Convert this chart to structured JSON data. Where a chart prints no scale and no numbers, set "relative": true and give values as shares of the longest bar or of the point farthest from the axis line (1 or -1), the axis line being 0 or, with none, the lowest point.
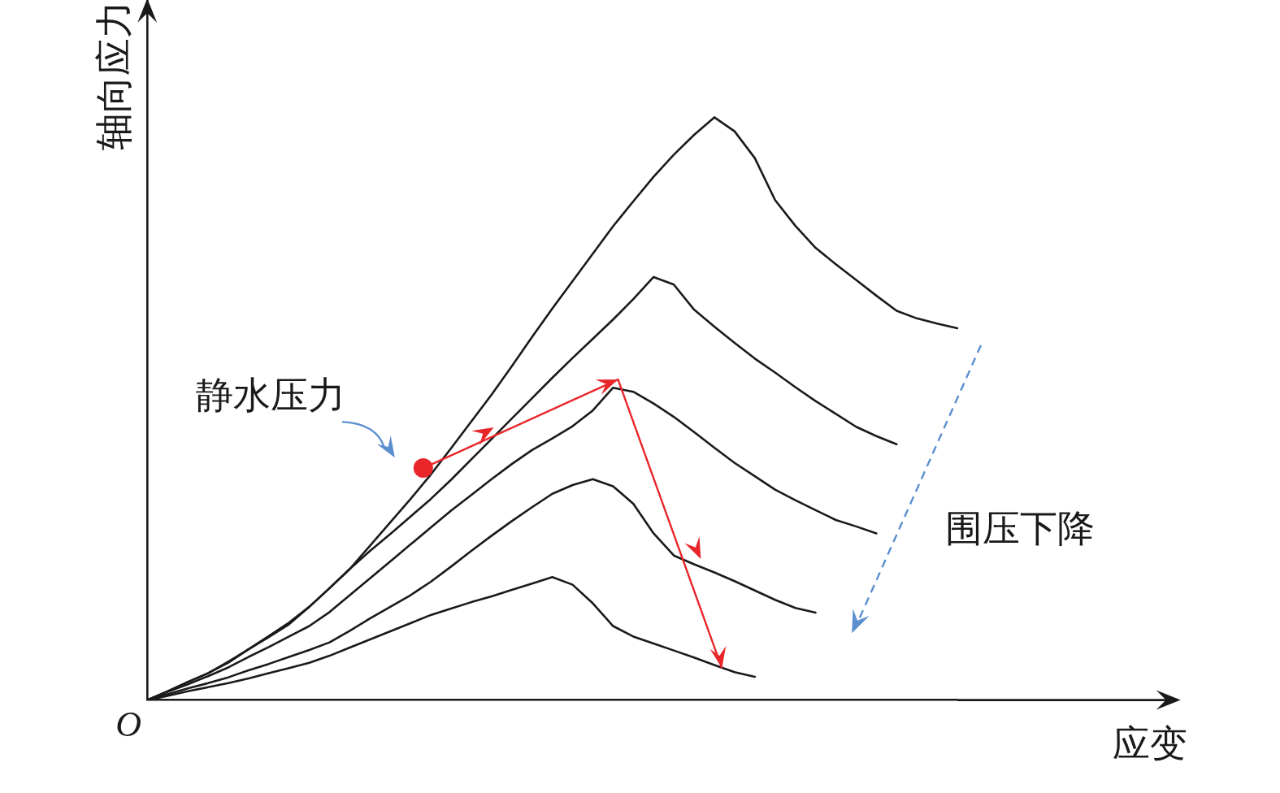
{
  "chart_data": {
    "type": "line",
    "relative": true,
    "xlabel": "应变",
    "ylabel": "轴向应力",
    "annotations": [
      "静水压力",
      "围压下降",
      "O"
    ],
    "grid": false,
    "legend": false,
    "marker": "none",
    "line_style": "solid",
    "categories": [
      null,
      null,
      null,
      null,
      null,
      null,
      null,
      null,
      null,
      null,
      null,
      null,
      null,
      null,
      null,
      null,
      null,
      null,
      null,
      null,
      null,
      null,
      null,
      null,
      null,
      null,
      null,
      null,
      null,
      null,
      null,
      null,
      null,
      null,
      null,
      null,
      null,
      null,
      null,
      null,
      null
    ],
    "series": [
      {
        "color": "#1a1a1a",
        "values": [
          0,
          0.015,
          0.031,
          0.046,
          0.066,
          0.087,
          0.108,
          0.13,
          0.16,
          0.192,
          0.225,
          0.265,
          0.305,
          0.345,
          0.387,
          0.432,
          0.478,
          0.524,
          0.573,
          0.623,
          0.672,
          0.719,
          0.766,
          0.813,
          0.856,
          0.898,
          0.936,
          0.97,
          1.0,
          0.976,
          0.93,
          0.858,
          0.814,
          0.776,
          0.748,
          0.721,
          0.694,
          0.668,
          0.655,
          0.646,
          0.638
        ]
      },
      {
        "color": "#1a1a1a",
        "values": [
          0,
          0.015,
          0.031,
          0.046,
          0.064,
          0.087,
          0.11,
          0.133,
          0.16,
          0.192,
          0.225,
          0.256,
          0.285,
          0.315,
          0.345,
          0.378,
          0.413,
          0.448,
          0.483,
          0.518,
          0.553,
          0.587,
          0.62,
          0.653,
          0.688,
          0.726,
          0.713,
          0.67,
          0.641,
          0.613,
          0.586,
          0.562,
          0.537,
          0.513,
          0.491,
          0.469,
          0.453,
          0.439,
          null,
          null,
          null
        ]
      },
      {
        "color": "#1a1a1a",
        "values": [
          0,
          0.014,
          0.027,
          0.041,
          0.056,
          0.074,
          0.091,
          0.109,
          0.127,
          0.151,
          0.18,
          0.209,
          0.238,
          0.267,
          0.296,
          0.325,
          0.352,
          0.379,
          0.405,
          0.429,
          0.449,
          0.47,
          0.497,
          0.536,
          0.529,
          0.509,
          0.486,
          0.46,
          0.433,
          0.407,
          0.384,
          0.361,
          0.343,
          0.326,
          0.309,
          0.298,
          0.286,
          null,
          null,
          null,
          null
        ]
      },
      {
        "color": "#1a1a1a",
        "values": [
          0,
          0.01,
          0.02,
          0.029,
          0.039,
          0.051,
          0.062,
          0.074,
          0.086,
          0.099,
          0.119,
          0.14,
          0.16,
          0.18,
          0.203,
          0.229,
          0.256,
          0.282,
          0.307,
          0.331,
          0.354,
          0.369,
          0.379,
          0.367,
          0.337,
          0.286,
          0.248,
          0.233,
          0.219,
          0.204,
          0.188,
          0.172,
          0.158,
          0.15,
          null,
          null,
          null,
          null,
          null,
          null,
          null
        ]
      },
      {
        "color": "#1a1a1a",
        "values": [
          0,
          0.007,
          0.015,
          0.022,
          0.029,
          0.037,
          0.046,
          0.055,
          0.064,
          0.076,
          0.09,
          0.104,
          0.118,
          0.132,
          0.146,
          0.157,
          0.168,
          0.178,
          0.189,
          0.2,
          0.211,
          0.198,
          0.166,
          0.127,
          0.109,
          0.097,
          0.085,
          0.073,
          0.06,
          0.048,
          0.04,
          null,
          null,
          null,
          null,
          null,
          null,
          null,
          null,
          null,
          null
        ]
      }
    ]
  }
}
